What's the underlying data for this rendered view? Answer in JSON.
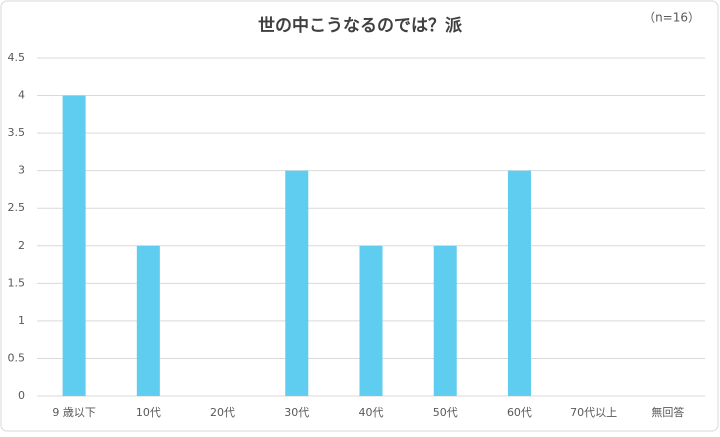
{
  "chart_data": {
    "type": "bar",
    "title": "世の中こうなるのでは？派",
    "annotation": "（n=16）",
    "categories": [
      "9 歳以下",
      "10代",
      "20代",
      "30代",
      "40代",
      "50代",
      "60代",
      "70代以上",
      "無回答"
    ],
    "values": [
      4,
      2,
      0,
      3,
      2,
      2,
      3,
      0,
      0
    ],
    "color": "#5ecdf0",
    "ylim": [
      0,
      4.5
    ],
    "yticks": [
      0,
      0.5,
      1,
      1.5,
      2,
      2.5,
      3,
      3.5,
      4,
      4.5
    ],
    "grid": true
  }
}
